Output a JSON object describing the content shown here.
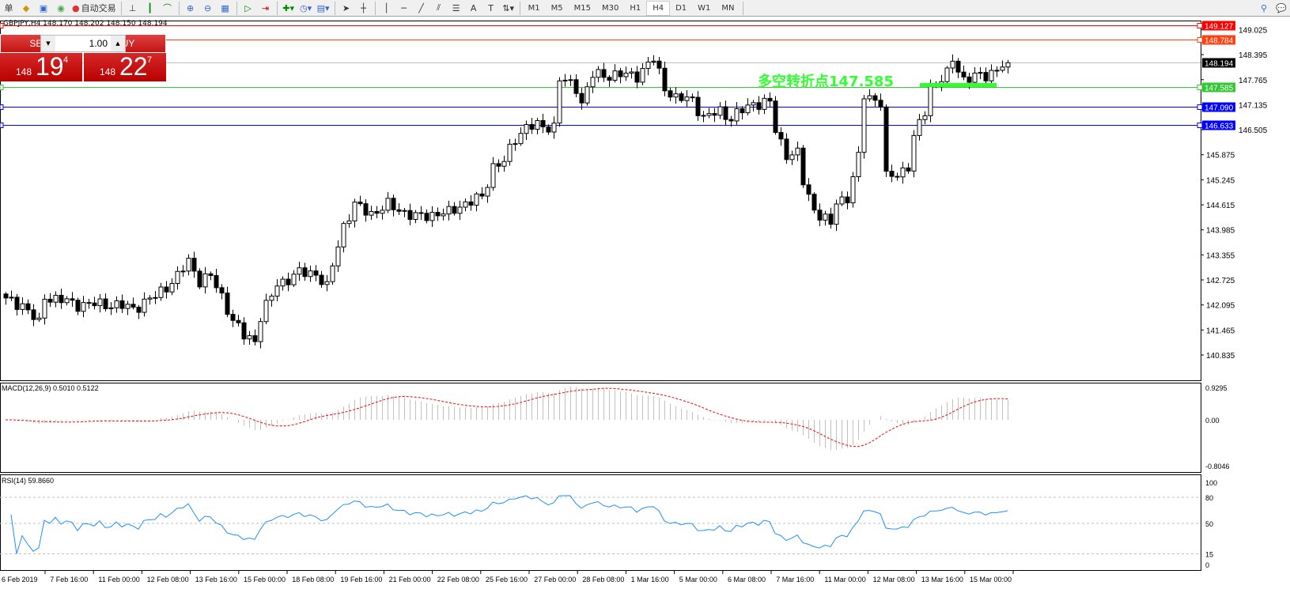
{
  "toolbar": {
    "items": [
      "单",
      "expert-advisor-icon",
      "strategy-tester-icon",
      "signal-icon"
    ],
    "auto_trade": "自动交易",
    "timeframes": [
      "M1",
      "M5",
      "M15",
      "M30",
      "H1",
      "H4",
      "D1",
      "W1",
      "MN"
    ],
    "active_timeframe": "H4",
    "text_tool": "A"
  },
  "chart": {
    "info": "GBPJPY,H4  148.170 148.202 148.150 148.194",
    "trade": {
      "sell": "SELL",
      "buy": "BUY",
      "lot": "1.00",
      "bid_small": "148",
      "bid_big": "19",
      "bid_tiny": "4",
      "ask_small": "148",
      "ask_big": "22",
      "ask_tiny": "7"
    },
    "annotation": "多空转折点147.585",
    "annotation_color": "#32ff32"
  },
  "chart_data": {
    "type": "candlestick",
    "symbol": "GBPJPY",
    "timeframe": "H4",
    "price_ticks": [
      "149.025",
      "148.395",
      "147.765",
      "147.135",
      "146.505",
      "145.875",
      "145.245",
      "144.615",
      "143.985",
      "143.355",
      "142.725",
      "142.095",
      "141.465",
      "140.835"
    ],
    "ylim": [
      140.835,
      149.3
    ],
    "levels": [
      {
        "price": "149.127",
        "color": "#ff0000"
      },
      {
        "price": "148.784",
        "color": "#ff4010"
      },
      {
        "price": "148.194",
        "color": "#000000",
        "line": "#c0c0c0"
      },
      {
        "price": "147.585",
        "color": "#32c832"
      },
      {
        "price": "147.090",
        "color": "#0000ff"
      },
      {
        "price": "146.633",
        "color": "#0000ff"
      }
    ],
    "approx_closes": [
      [
        0,
        142.21
      ],
      [
        3,
        142.11
      ],
      [
        6,
        141.61
      ],
      [
        7,
        142.31
      ],
      [
        13,
        142.11
      ],
      [
        19,
        142.11
      ],
      [
        23,
        142.01
      ],
      [
        27,
        142.31
      ],
      [
        31,
        142.81
      ],
      [
        33,
        143.2
      ],
      [
        35,
        142.71
      ],
      [
        37,
        142.81
      ],
      [
        39,
        142.31
      ],
      [
        41,
        141.71
      ],
      [
        43,
        141.31
      ],
      [
        45,
        141.21
      ],
      [
        46,
        141.81
      ],
      [
        48,
        142.31
      ],
      [
        49,
        142.61
      ],
      [
        53,
        142.9
      ],
      [
        56,
        142.9
      ],
      [
        58,
        142.51
      ],
      [
        59,
        143.1
      ],
      [
        61,
        144.1
      ],
      [
        63,
        144.6
      ],
      [
        66,
        144.4
      ],
      [
        69,
        144.6
      ],
      [
        71,
        144.5
      ],
      [
        74,
        144.3
      ],
      [
        78,
        144.4
      ],
      [
        80,
        144.4
      ],
      [
        82,
        144.6
      ],
      [
        86,
        144.8
      ],
      [
        88,
        145.59
      ],
      [
        90,
        145.69
      ],
      [
        92,
        146.29
      ],
      [
        94,
        146.59
      ],
      [
        99,
        146.59
      ],
      [
        100,
        147.78
      ],
      [
        103,
        147.58
      ],
      [
        104,
        147.18
      ],
      [
        106,
        147.88
      ],
      [
        110,
        147.88
      ],
      [
        114,
        147.88
      ],
      [
        117,
        148.28
      ],
      [
        119,
        147.58
      ],
      [
        121,
        147.28
      ],
      [
        124,
        147.28
      ],
      [
        126,
        146.79
      ],
      [
        129,
        146.98
      ],
      [
        131,
        146.79
      ],
      [
        135,
        147.18
      ],
      [
        138,
        147.18
      ],
      [
        139,
        146.49
      ],
      [
        141,
        145.89
      ],
      [
        143,
        145.89
      ],
      [
        144,
        145.19
      ],
      [
        146,
        144.5
      ],
      [
        149,
        144.1
      ],
      [
        150,
        144.7
      ],
      [
        152,
        144.8
      ],
      [
        154,
        145.79
      ],
      [
        155,
        147.38
      ],
      [
        157,
        147.28
      ],
      [
        158,
        147.18
      ],
      [
        159,
        145.29
      ],
      [
        161,
        145.39
      ],
      [
        163,
        145.59
      ],
      [
        164,
        146.29
      ],
      [
        166,
        146.98
      ],
      [
        167,
        147.58
      ],
      [
        170,
        147.88
      ],
      [
        171,
        148.28
      ],
      [
        173,
        147.78
      ],
      [
        177,
        147.88
      ],
      [
        181,
        148.19
      ]
    ],
    "macd": {
      "label": "MACD(12,26,9) 0.5010 0.5122",
      "ticks": [
        "0.9295",
        "0.00",
        "-0.8046"
      ]
    },
    "rsi": {
      "label": "RSI(14) 59.8660",
      "ticks": [
        "100",
        "80",
        "50",
        "15",
        "0"
      ]
    },
    "time_labels": [
      "6 Feb 2019",
      "7 Feb 16:00",
      "11 Feb 00:00",
      "12 Feb 08:00",
      "13 Feb 16:00",
      "15 Feb 00:00",
      "18 Feb 08:00",
      "19 Feb 16:00",
      "21 Feb 00:00",
      "22 Feb 08:00",
      "25 Feb 16:00",
      "27 Feb 00:00",
      "28 Feb 08:00",
      "1 Mar 16:00",
      "5 Mar 00:00",
      "6 Mar 08:00",
      "7 Mar 16:00",
      "11 Mar 00:00",
      "12 Mar 08:00",
      "13 Mar 16:00",
      "15 Mar 00:00"
    ]
  }
}
